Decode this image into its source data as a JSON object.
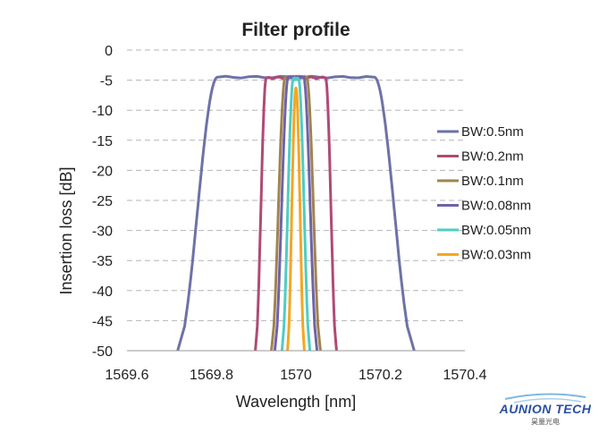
{
  "chart_data": {
    "type": "line",
    "title": "Filter profile",
    "xlabel": "Wavelength [nm]",
    "ylabel": "Insertion loss [dB]",
    "xlim": [
      1569.6,
      1570.4
    ],
    "ylim": [
      -50,
      0
    ],
    "xticks": [
      "1569.6",
      "1569.8",
      "1570",
      "1570.2",
      "1570.4"
    ],
    "yticks": [
      "0",
      "-5",
      "-10",
      "-15",
      "-20",
      "-25",
      "-30",
      "-35",
      "-40",
      "-45",
      "-50"
    ],
    "grid": "horizontal dashed",
    "legend_position": "right",
    "series": [
      {
        "name": "BW:0.5nm",
        "color": "#6e72a6",
        "center": 1570.0,
        "top_half_width": 0.185,
        "bottom_half_width": 0.28,
        "insertion_loss": -4.5
      },
      {
        "name": "BW:0.2nm",
        "color": "#b04a73",
        "center": 1570.0,
        "top_half_width": 0.07,
        "bottom_half_width": 0.096,
        "insertion_loss": -4.6
      },
      {
        "name": "BW:0.1nm",
        "color": "#a08350",
        "center": 1570.0,
        "top_half_width": 0.025,
        "bottom_half_width": 0.058,
        "insertion_loss": -4.5
      },
      {
        "name": "BW:0.08nm",
        "color": "#6f63a8",
        "center": 1570.0,
        "top_half_width": 0.018,
        "bottom_half_width": 0.05,
        "insertion_loss": -4.5
      },
      {
        "name": "BW:0.05nm",
        "color": "#4ecdc4",
        "center": 1570.0,
        "top_half_width": 0.006,
        "bottom_half_width": 0.033,
        "insertion_loss": -4.8
      },
      {
        "name": "BW:0.03nm",
        "color": "#f5a623",
        "center": 1570.0,
        "top_half_width": 0.0,
        "bottom_half_width": 0.02,
        "insertion_loss": -6.3
      }
    ]
  },
  "logo": {
    "brand": "AUNION TECH",
    "subtitle": "昊量光电"
  }
}
